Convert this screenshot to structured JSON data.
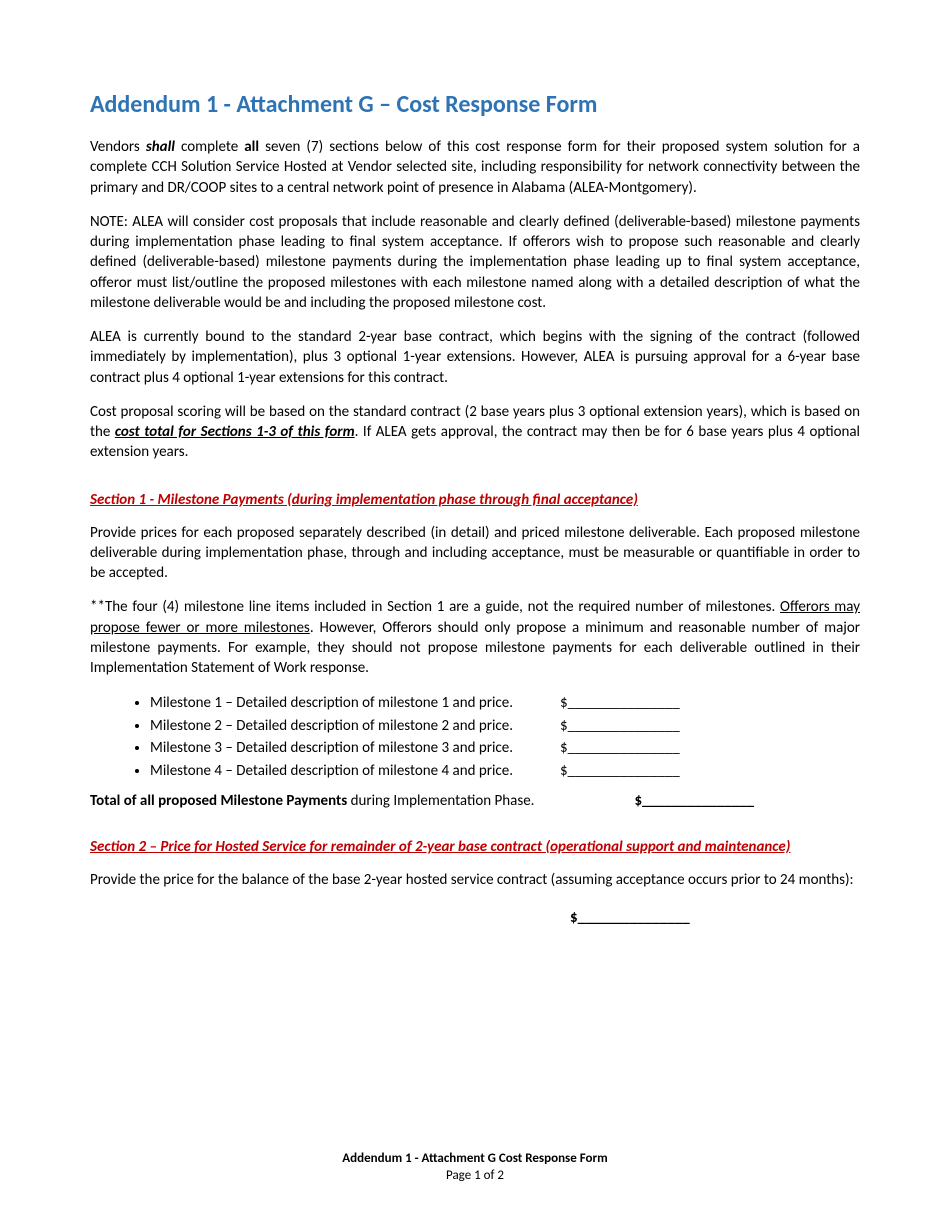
{
  "title": "Addendum 1 - Attachment G – Cost Response Form",
  "intro": {
    "p1_pre": "Vendors ",
    "p1_shall": "shall",
    "p1_mid1": " complete ",
    "p1_all": "all",
    "p1_rest": " seven (7) sections below of this cost response form for their proposed system solution for a complete CCH Solution Service Hosted at Vendor selected site, including responsibility for network connectivity between the primary and DR/COOP sites to a central network point of presence in Alabama (ALEA-Montgomery).",
    "p2": "NOTE:  ALEA will consider cost proposals that include reasonable and clearly defined (deliverable-based) milestone payments during implementation phase leading to final system acceptance.   If offerors wish to propose such reasonable and clearly defined (deliverable-based) milestone payments during the implementation phase leading up to final system acceptance, offeror must list/outline the proposed milestones with each milestone named along with a detailed description of what the milestone deliverable would be and including the proposed milestone cost.",
    "p3": "ALEA is currently bound to the standard 2-year base contract, which begins with the signing of the contract (followed immediately by implementation), plus 3 optional 1-year extensions. However, ALEA is pursuing approval for a 6-year base contract plus 4 optional 1-year extensions for this contract.",
    "p4_pre": "Cost proposal scoring will be based on the standard contract (2 base years plus 3 optional extension years), which is based on the ",
    "p4_emph": "cost total for Sections 1-3 of this form",
    "p4_post": ". If ALEA gets approval, the contract may then be for 6 base years plus 4 optional extension years."
  },
  "section1": {
    "header": "Section 1 - Milestone Payments (during implementation phase through final acceptance)",
    "p1": "Provide prices for each proposed separately described (in detail) and priced milestone deliverable.  Each proposed milestone deliverable during implementation phase, through and including acceptance, must be measurable or quantifiable in order to be accepted.",
    "p2_pre": "**The four (4) milestone line items included in Section 1 are a guide, not the required number of milestones.  ",
    "p2_u": "Offerors may propose fewer or more milestones",
    "p2_post": ".  However, Offerors should only propose a minimum and reasonable number of major milestone payments.  For example, they should not propose milestone payments for each deliverable outlined in their Implementation Statement of Work response.",
    "milestones": [
      {
        "label": "Milestone 1 – Detailed description of milestone 1 and price.",
        "amount": "$_______________"
      },
      {
        "label": "Milestone 2 – Detailed description of milestone 2 and price.",
        "amount": "$_______________"
      },
      {
        "label": "Milestone 3 – Detailed description of milestone 3 and price.",
        "amount": "$_______________"
      },
      {
        "label": "Milestone 4 – Detailed description of milestone 4 and price.",
        "amount": "$_______________"
      }
    ],
    "total_label_bold": "Total of all proposed Milestone Payments",
    "total_label_rest": " during Implementation Phase.",
    "total_amount": "$_______________"
  },
  "section2": {
    "header": "Section 2 – Price for Hosted Service for remainder of 2-year base contract (operational support and maintenance)",
    "p1": "Provide the price for the balance of the base 2-year hosted service contract (assuming acceptance occurs prior to 24 months):",
    "amount": "$_______________"
  },
  "footer": {
    "line1": "Addendum 1 - Attachment G     Cost Response Form",
    "line2": "Page 1 of 2"
  }
}
